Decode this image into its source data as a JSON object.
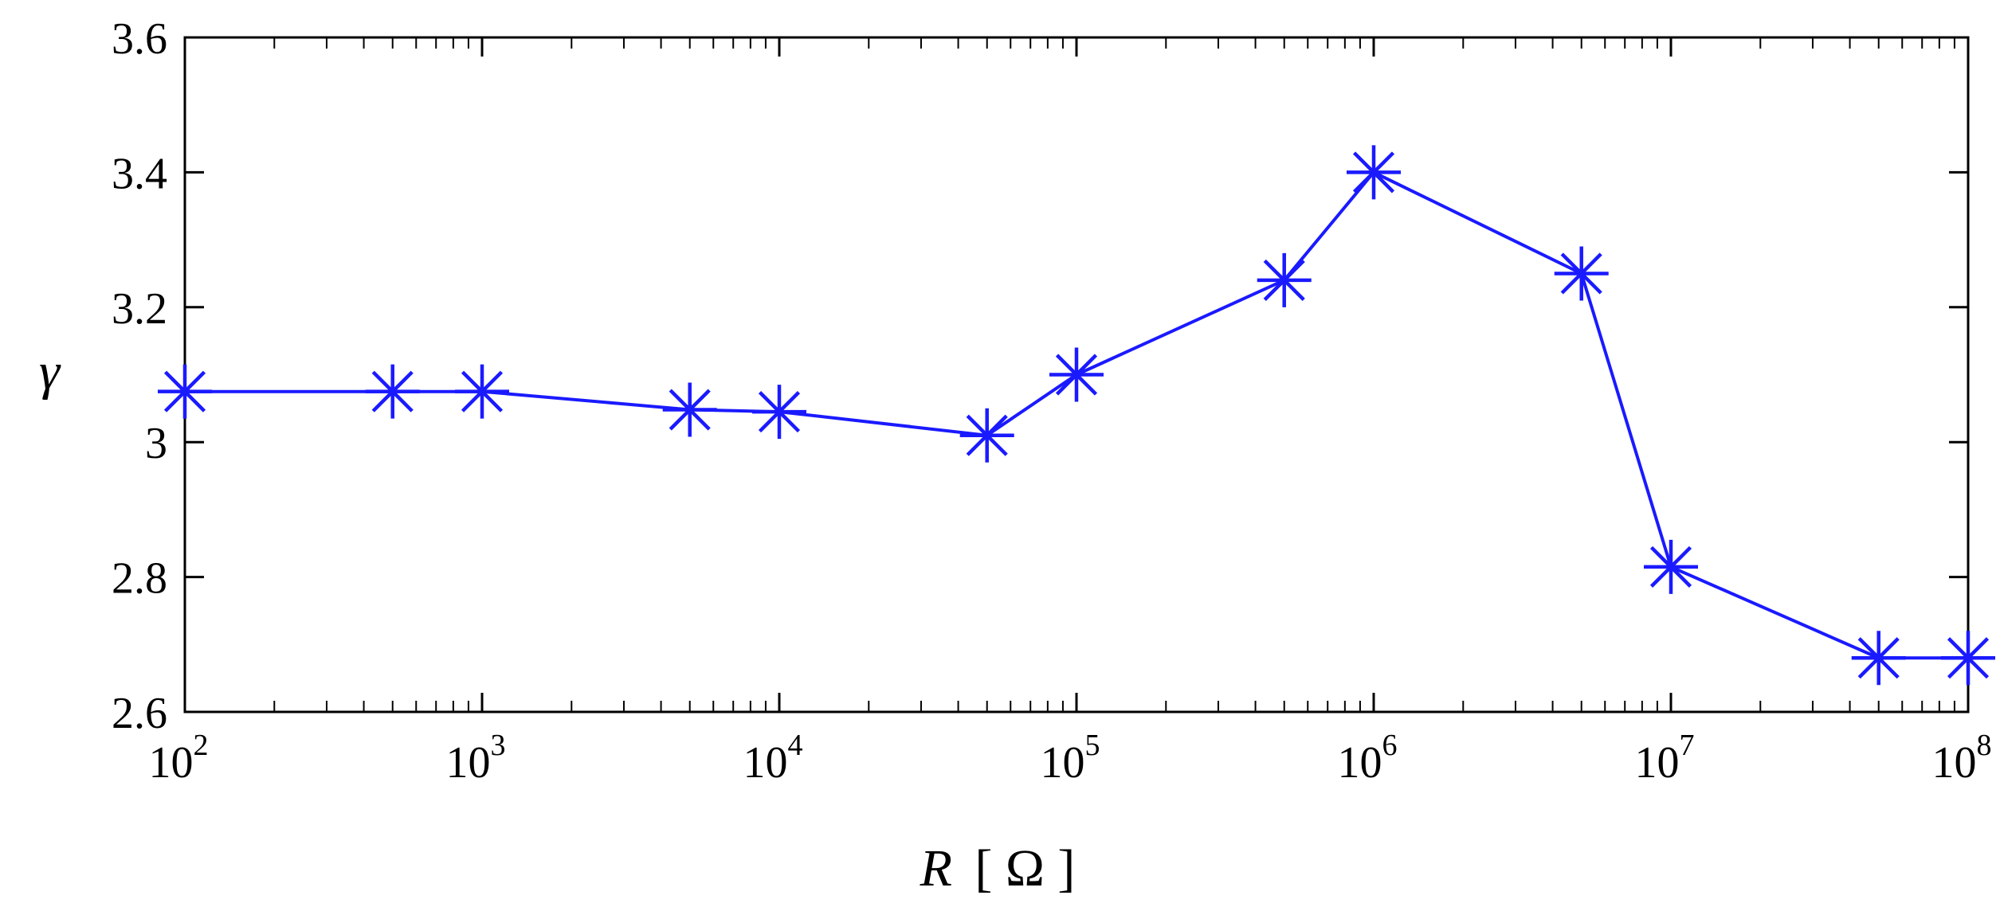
{
  "chart_data": {
    "type": "line",
    "xlabel": "R [ Ω ]",
    "xlabel_var": "R",
    "xlabel_unit": "[ Ω ]",
    "ylabel": "γ",
    "xscale": "log",
    "xlim": [
      100,
      100000000
    ],
    "ylim": [
      2.6,
      3.6
    ],
    "x_ticks": [
      {
        "base": "10",
        "exp": "2",
        "value": 100
      },
      {
        "base": "10",
        "exp": "3",
        "value": 1000
      },
      {
        "base": "10",
        "exp": "4",
        "value": 10000
      },
      {
        "base": "10",
        "exp": "5",
        "value": 100000
      },
      {
        "base": "10",
        "exp": "6",
        "value": 1000000
      },
      {
        "base": "10",
        "exp": "7",
        "value": 10000000
      },
      {
        "base": "10",
        "exp": "8",
        "value": 100000000
      }
    ],
    "y_ticks": [
      {
        "label": "2.6",
        "value": 2.6
      },
      {
        "label": "2.8",
        "value": 2.8
      },
      {
        "label": "3",
        "value": 3.0
      },
      {
        "label": "3.2",
        "value": 3.2
      },
      {
        "label": "3.4",
        "value": 3.4
      },
      {
        "label": "3.6",
        "value": 3.6
      }
    ],
    "grid": false,
    "color": "#1a1aff",
    "marker": "asterisk",
    "series": [
      {
        "x": [
          100,
          500,
          1000,
          5000,
          10000,
          50000,
          100000,
          500000,
          1000000,
          5000000,
          10000000,
          50000000,
          100000000
        ],
        "y": [
          3.075,
          3.075,
          3.075,
          3.048,
          3.045,
          3.01,
          3.1,
          3.24,
          3.4,
          3.25,
          2.815,
          2.68,
          2.68
        ]
      }
    ]
  }
}
